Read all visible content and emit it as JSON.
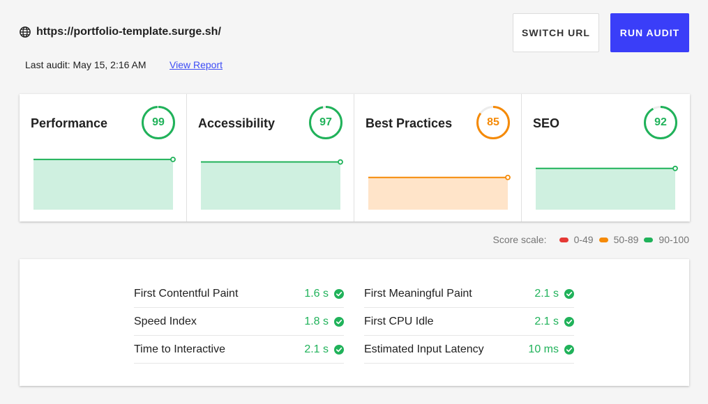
{
  "header": {
    "url": "https://portfolio-template.surge.sh/",
    "last_audit": "Last audit: May 15, 2:16 AM",
    "view_report": "View Report",
    "switch_url": "SWITCH URL",
    "run_audit": "RUN AUDIT"
  },
  "colors": {
    "green": "#20b25a",
    "orange": "#f58a07",
    "red": "#e53935",
    "green_fill": "#cff0e0",
    "orange_fill": "#ffe4c9",
    "accent": "#3a3ef8"
  },
  "cards": [
    {
      "title": "Performance",
      "score": "99",
      "value": 99,
      "status": "green"
    },
    {
      "title": "Accessibility",
      "score": "97",
      "value": 97,
      "status": "green"
    },
    {
      "title": "Best Practices",
      "score": "85",
      "value": 85,
      "status": "orange"
    },
    {
      "title": "SEO",
      "score": "92",
      "value": 92,
      "status": "green"
    }
  ],
  "scale": {
    "label": "Score scale:",
    "items": [
      {
        "label": "0-49",
        "color": "red"
      },
      {
        "label": "50-89",
        "color": "orange"
      },
      {
        "label": "90-100",
        "color": "green"
      }
    ]
  },
  "metrics": {
    "left": [
      {
        "label": "First Contentful Paint",
        "value": "1.6 s"
      },
      {
        "label": "Speed Index",
        "value": "1.8 s"
      },
      {
        "label": "Time to Interactive",
        "value": "2.1 s"
      }
    ],
    "right": [
      {
        "label": "First Meaningful Paint",
        "value": "2.1 s"
      },
      {
        "label": "First CPU Idle",
        "value": "2.1 s"
      },
      {
        "label": "Estimated Input Latency",
        "value": "10 ms"
      }
    ]
  }
}
